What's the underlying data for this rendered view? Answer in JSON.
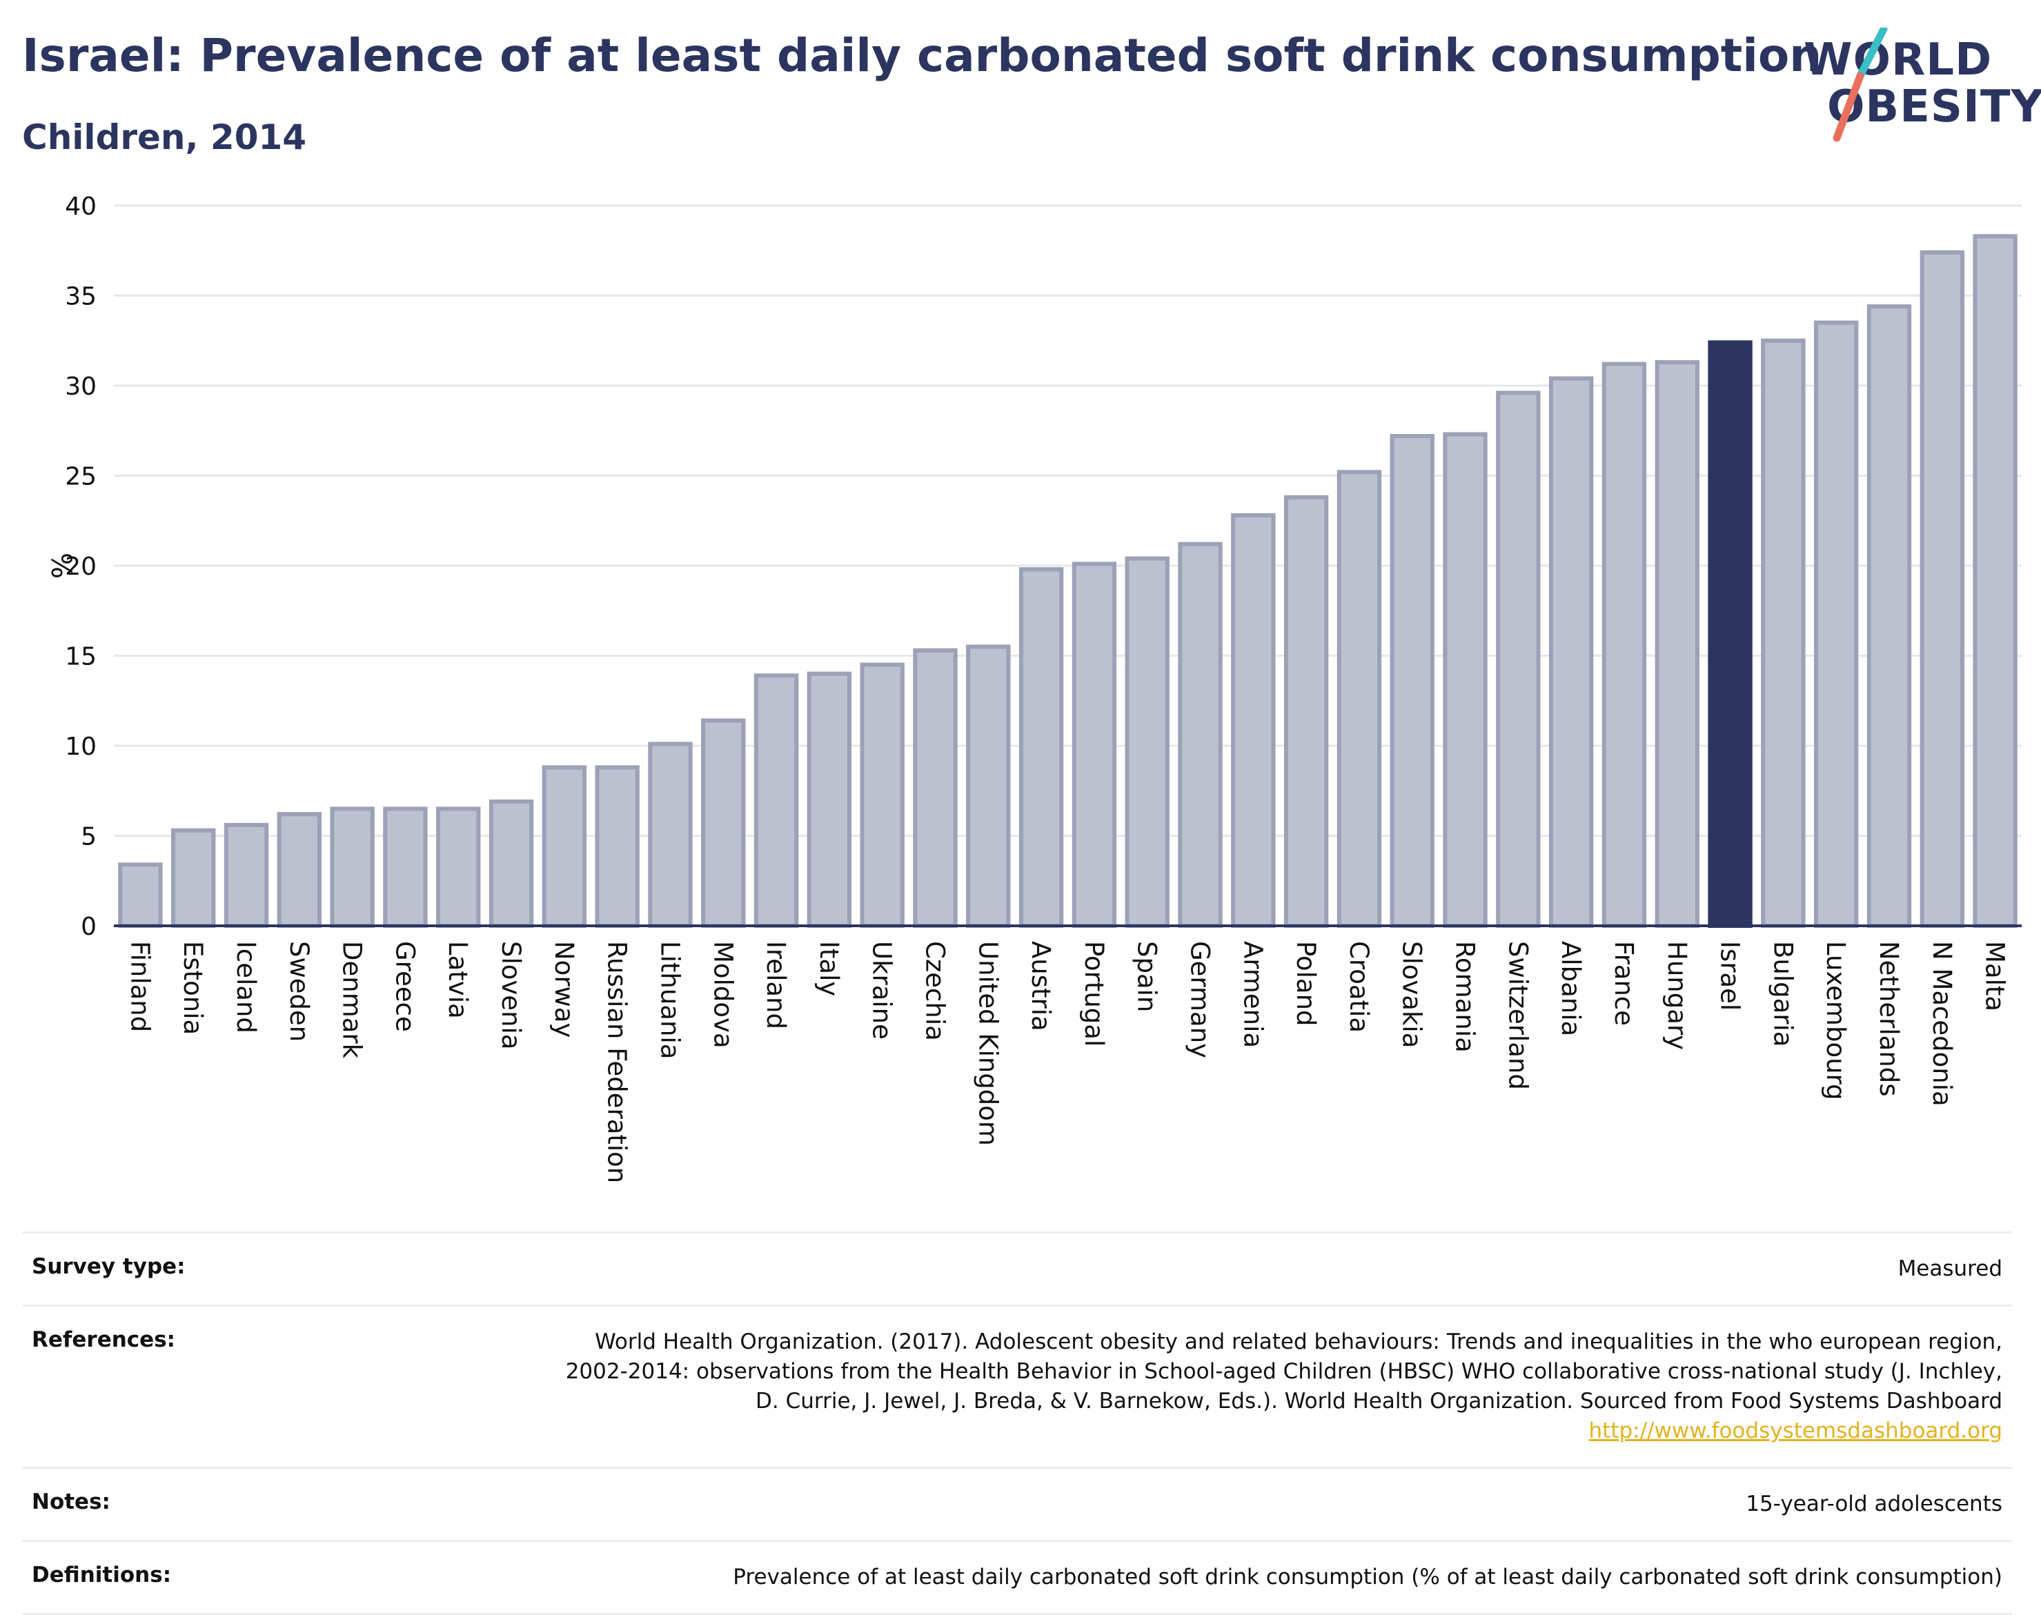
{
  "title": "Israel: Prevalence of at least daily carbonated soft drink consumption",
  "subtitle": "Children, 2014",
  "logo": {
    "line1": "WORLD",
    "line2": "OBESITY"
  },
  "colors": {
    "highlight": "#2b3560",
    "bar_fill": "#bcc0cf",
    "bar_stroke": "#9ba1b7",
    "grid": "#e6e7ec",
    "text": "#2b3560",
    "link": "#e3b21f"
  },
  "chart_data": {
    "type": "bar",
    "title": "Israel: Prevalence of at least daily carbonated soft drink consumption",
    "subtitle": "Children, 2014",
    "xlabel": "",
    "ylabel": "%",
    "ylim": [
      0,
      40
    ],
    "yticks": [
      0,
      5,
      10,
      15,
      20,
      25,
      30,
      35,
      40
    ],
    "grid": true,
    "highlight": "Israel",
    "categories": [
      "Finland",
      "Estonia",
      "Iceland",
      "Sweden",
      "Denmark",
      "Greece",
      "Latvia",
      "Slovenia",
      "Norway",
      "Russian Federation",
      "Lithuania",
      "Moldova",
      "Ireland",
      "Italy",
      "Ukraine",
      "Czechia",
      "United Kingdom",
      "Austria",
      "Portugal",
      "Spain",
      "Germany",
      "Armenia",
      "Poland",
      "Croatia",
      "Slovakia",
      "Romania",
      "Switzerland",
      "Albania",
      "France",
      "Hungary",
      "Israel",
      "Bulgaria",
      "Luxembourg",
      "Netherlands",
      "N Macedonia",
      "Malta"
    ],
    "values": [
      3.4,
      5.3,
      5.6,
      6.2,
      6.5,
      6.5,
      6.5,
      6.9,
      8.8,
      8.8,
      10.1,
      11.4,
      13.9,
      14.0,
      14.5,
      15.3,
      15.5,
      19.8,
      20.1,
      20.4,
      21.2,
      22.8,
      23.8,
      25.2,
      27.2,
      27.3,
      29.6,
      30.4,
      31.2,
      31.3,
      32.4,
      32.5,
      33.5,
      34.4,
      37.4,
      38.3
    ]
  },
  "info": {
    "survey_type": {
      "label": "Survey type:",
      "value": "Measured"
    },
    "references": {
      "label": "References:",
      "line1": "World Health Organization. (2017). Adolescent obesity and related behaviours: Trends and inequalities in the who european region,",
      "line2": "2002-2014: observations from the Health Behavior in School-aged Children (HBSC) WHO collaborative cross-national study (J. Inchley,",
      "line3": "D. Currie, J. Jewel, J. Breda, & V. Barnekow, Eds.). World Health Organization. Sourced from Food Systems Dashboard",
      "link": "http://www.foodsystemsdashboard.org"
    },
    "notes": {
      "label": "Notes:",
      "value": "15-year-old adolescents"
    },
    "definitions": {
      "label": "Definitions:",
      "value": "Prevalence of at least daily carbonated soft drink consumption (% of at least daily carbonated soft drink consumption)"
    }
  }
}
